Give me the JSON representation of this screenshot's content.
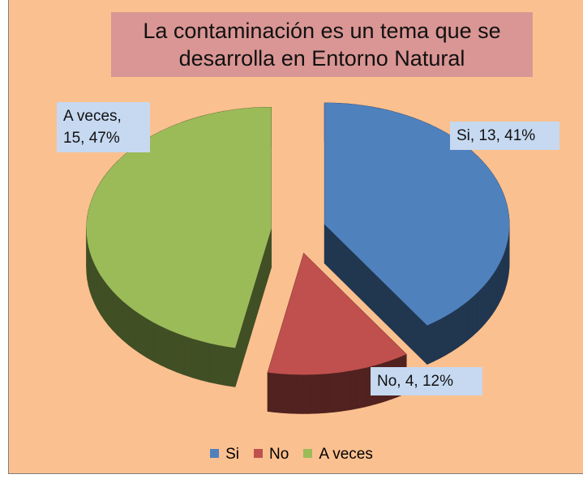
{
  "chart_data": {
    "type": "pie3d",
    "title": "La contaminación es un tema que se desarrolla en Entorno Natural",
    "categories": [
      "Si",
      "No",
      "A veces"
    ],
    "values": [
      13,
      4,
      15
    ],
    "value_labels": [
      "Si, 13, 41%",
      "No, 4, 12%",
      "A veces, 15, 47%"
    ],
    "colors": [
      "#4f81bd",
      "#c0504d",
      "#9bbb59"
    ],
    "legend": "bottom"
  }
}
